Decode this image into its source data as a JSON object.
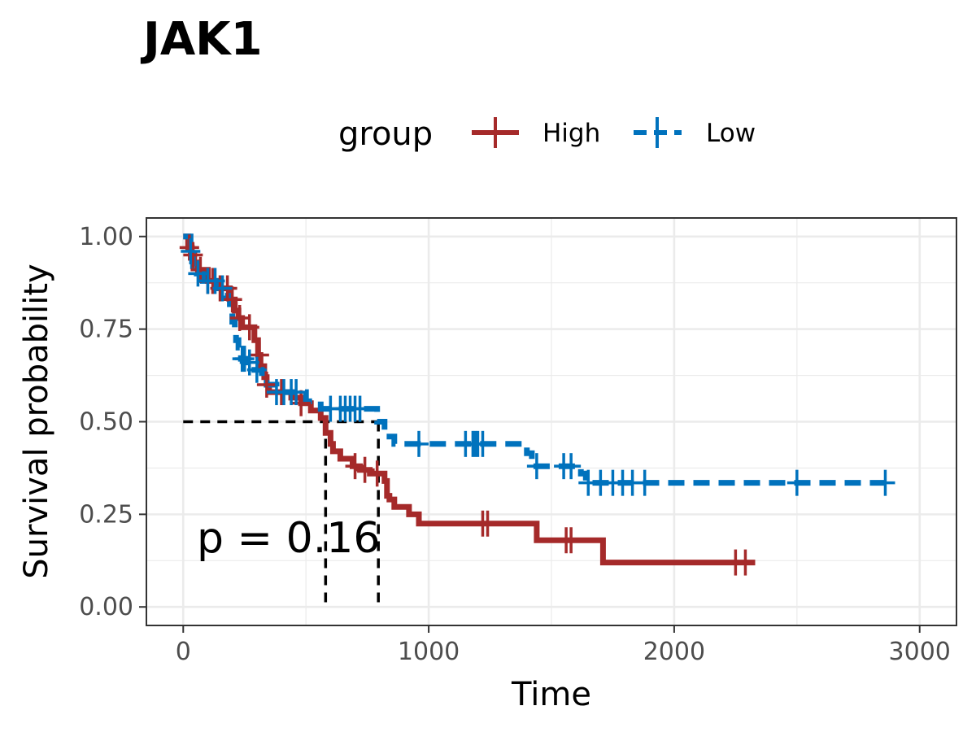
{
  "chart_data": {
    "type": "line",
    "title": "JAK1",
    "xlabel": "Time",
    "ylabel": "Survival probability",
    "xlim": [
      -150,
      3150
    ],
    "ylim": [
      -0.05,
      1.05
    ],
    "x_ticks": [
      0,
      1000,
      2000,
      3000
    ],
    "x_tick_labels": [
      "0",
      "1000",
      "2000",
      "3000"
    ],
    "y_ticks": [
      0,
      0.25,
      0.5,
      0.75,
      1.0
    ],
    "y_tick_labels": [
      "0.00",
      "0.25",
      "0.50",
      "0.75",
      "1.00"
    ],
    "grid": true,
    "legend": {
      "title": "group",
      "position": "top"
    },
    "annotation": "p = 0.16",
    "median_lines": {
      "y": 0.5,
      "x": [
        580,
        795
      ],
      "color": "#000000"
    },
    "series": [
      {
        "name": "High",
        "color": "#A52A2A",
        "line_style": "solid",
        "steps": [
          [
            0,
            1.0
          ],
          [
            20,
            0.97
          ],
          [
            35,
            0.95
          ],
          [
            45,
            0.93
          ],
          [
            60,
            0.91
          ],
          [
            100,
            0.88
          ],
          [
            150,
            0.86
          ],
          [
            190,
            0.83
          ],
          [
            210,
            0.8
          ],
          [
            225,
            0.78
          ],
          [
            240,
            0.755
          ],
          [
            290,
            0.72
          ],
          [
            305,
            0.68
          ],
          [
            315,
            0.65
          ],
          [
            330,
            0.62
          ],
          [
            340,
            0.6
          ],
          [
            350,
            0.58
          ],
          [
            440,
            0.565
          ],
          [
            480,
            0.55
          ],
          [
            520,
            0.53
          ],
          [
            560,
            0.51
          ],
          [
            580,
            0.47
          ],
          [
            600,
            0.44
          ],
          [
            610,
            0.42
          ],
          [
            640,
            0.4
          ],
          [
            690,
            0.38
          ],
          [
            720,
            0.37
          ],
          [
            760,
            0.36
          ],
          [
            820,
            0.34
          ],
          [
            830,
            0.3
          ],
          [
            840,
            0.29
          ],
          [
            860,
            0.27
          ],
          [
            920,
            0.25
          ],
          [
            960,
            0.225
          ],
          [
            1440,
            0.18
          ],
          [
            1710,
            0.12
          ],
          [
            2330,
            0.12
          ]
        ],
        "censor_times": [
          25,
          40,
          70,
          100,
          120,
          150,
          180,
          200,
          230,
          270,
          310,
          340,
          400,
          480,
          700,
          740,
          790,
          1220,
          1240,
          1560,
          1580,
          2250,
          2290
        ]
      },
      {
        "name": "Low",
        "color": "#0072BD",
        "line_style": "dashed",
        "steps": [
          [
            0,
            1.0
          ],
          [
            30,
            0.96
          ],
          [
            40,
            0.92
          ],
          [
            55,
            0.9
          ],
          [
            80,
            0.88
          ],
          [
            140,
            0.86
          ],
          [
            170,
            0.84
          ],
          [
            190,
            0.8
          ],
          [
            200,
            0.77
          ],
          [
            210,
            0.75
          ],
          [
            215,
            0.72
          ],
          [
            225,
            0.7
          ],
          [
            235,
            0.67
          ],
          [
            260,
            0.66
          ],
          [
            290,
            0.64
          ],
          [
            320,
            0.62
          ],
          [
            340,
            0.6
          ],
          [
            380,
            0.58
          ],
          [
            500,
            0.555
          ],
          [
            560,
            0.535
          ],
          [
            790,
            0.5
          ],
          [
            820,
            0.46
          ],
          [
            860,
            0.44
          ],
          [
            1400,
            0.415
          ],
          [
            1420,
            0.38
          ],
          [
            1620,
            0.36
          ],
          [
            1640,
            0.335
          ],
          [
            2880,
            0.335
          ]
        ],
        "censor_times": [
          30,
          60,
          100,
          130,
          160,
          240,
          250,
          270,
          300,
          380,
          410,
          440,
          460,
          600,
          640,
          660,
          680,
          700,
          720,
          960,
          1150,
          1180,
          1190,
          1200,
          1220,
          1440,
          1550,
          1580,
          1650,
          1700,
          1750,
          1790,
          1830,
          1880,
          2500,
          2860
        ]
      }
    ]
  }
}
